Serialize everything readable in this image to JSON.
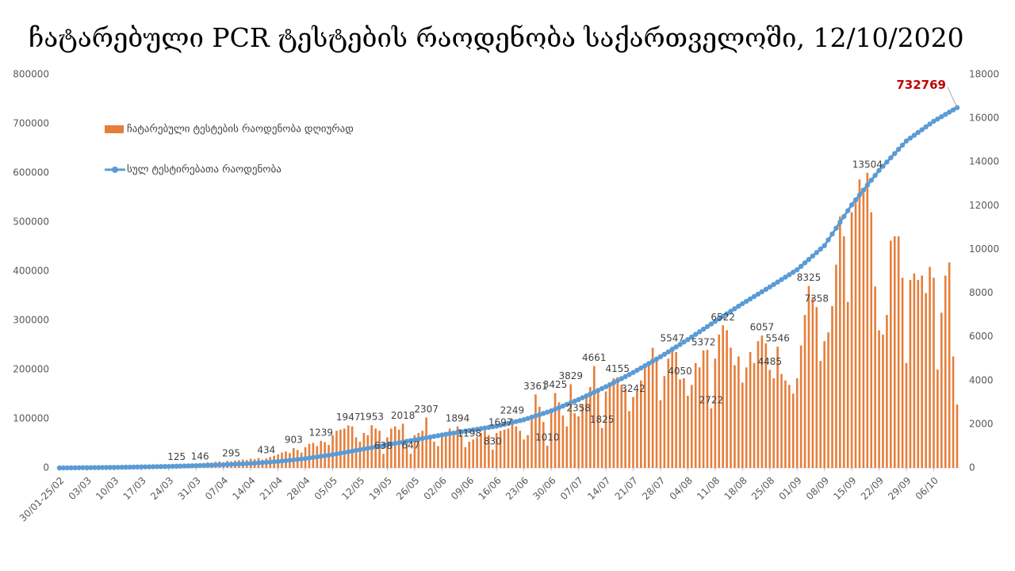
{
  "chart_data": {
    "type": "bar_line",
    "title": "ჩატარებული PCR ტესტების რაოდენობა საქართველოში, 12/10/2020",
    "legend": "top-left",
    "categories": [
      "30/01-25/02",
      null,
      null,
      null,
      null,
      null,
      null,
      "03/03",
      null,
      null,
      null,
      null,
      null,
      null,
      "10/03",
      null,
      null,
      null,
      null,
      null,
      null,
      "17/03",
      null,
      null,
      null,
      null,
      null,
      null,
      "24/03",
      null,
      null,
      null,
      null,
      null,
      null,
      "31/03",
      null,
      null,
      null,
      null,
      null,
      null,
      "07/04",
      null,
      null,
      null,
      null,
      null,
      null,
      "14/04",
      null,
      null,
      null,
      null,
      null,
      null,
      "21/04",
      null,
      null,
      null,
      null,
      null,
      null,
      "28/04",
      null,
      null,
      null,
      null,
      null,
      null,
      "05/05",
      null,
      null,
      null,
      null,
      null,
      null,
      "12/05",
      null,
      null,
      null,
      null,
      null,
      null,
      "19/05",
      null,
      null,
      null,
      null,
      null,
      null,
      "26/05",
      null,
      null,
      null,
      null,
      null,
      null,
      "02/06",
      null,
      null,
      null,
      null,
      null,
      null,
      "09/06",
      null,
      null,
      null,
      null,
      null,
      null,
      "16/06",
      null,
      null,
      null,
      null,
      null,
      null,
      "23/06",
      null,
      null,
      null,
      null,
      null,
      null,
      "30/06",
      null,
      null,
      null,
      null,
      null,
      null,
      "07/07",
      null,
      null,
      null,
      null,
      null,
      null,
      "14/07",
      null,
      null,
      null,
      null,
      null,
      null,
      "21/07",
      null,
      null,
      null,
      null,
      null,
      null,
      "28/07",
      null,
      null,
      null,
      null,
      null,
      null,
      "04/08",
      null,
      null,
      null,
      null,
      null,
      null,
      "11/08",
      null,
      null,
      null,
      null,
      null,
      null,
      "18/08",
      null,
      null,
      null,
      null,
      null,
      null,
      "25/08",
      null,
      null,
      null,
      null,
      null,
      null,
      "01/09",
      null,
      null,
      null,
      null,
      null,
      null,
      "08/09",
      null,
      null,
      null,
      null,
      null,
      null,
      "15/09",
      null,
      null,
      null,
      null,
      null,
      null,
      "22/09",
      null,
      null,
      null,
      null,
      null,
      null,
      "29/09",
      null,
      null,
      null,
      null,
      null,
      null,
      "06/10",
      null,
      null,
      null,
      null,
      null,
      null
    ],
    "series": [
      {
        "name": "ჩატარებული ტესტების რაოდენობა დღიურად",
        "color": "#e67e3a",
        "axis": "y2",
        "values": [
          40,
          10,
          15,
          20,
          25,
          30,
          20,
          40,
          35,
          50,
          45,
          60,
          55,
          70,
          40,
          65,
          80,
          75,
          90,
          100,
          80,
          110,
          95,
          120,
          130,
          100,
          140,
          115,
          150,
          160,
          125,
          170,
          180,
          150,
          200,
          190,
          146,
          210,
          260,
          240,
          280,
          300,
          250,
          320,
          295,
          330,
          350,
          380,
          360,
          420,
          400,
          450,
          380,
          434,
          500,
          560,
          620,
          700,
          750,
          680,
          903,
          820,
          700,
          950,
          1100,
          1150,
          1000,
          1239,
          1180,
          1050,
          1500,
          1700,
          1750,
          1800,
          1947,
          1900,
          1400,
          1200,
          1600,
          1500,
          1953,
          1800,
          1700,
          638,
          1400,
          1800,
          1900,
          1750,
          2018,
          1300,
          647,
          1500,
          1600,
          1700,
          2307,
          1400,
          1200,
          1000,
          1500,
          1650,
          1800,
          1700,
          1894,
          1500,
          950,
          1198,
          1300,
          1400,
          1600,
          1700,
          1500,
          830,
          1600,
          1697,
          1750,
          1800,
          2249,
          1900,
          1700,
          1300,
          1500,
          2200,
          3361,
          2800,
          2100,
          1010,
          2600,
          3425,
          3000,
          2400,
          1900,
          3829,
          2500,
          2358,
          2900,
          3200,
          3700,
          4661,
          3600,
          1825,
          3500,
          3900,
          4100,
          4155,
          3800,
          3600,
          2600,
          3242,
          3500,
          4000,
          4600,
          4700,
          5500,
          5000,
          3100,
          4200,
          5000,
          5547,
          5300,
          4050,
          4100,
          3300,
          3800,
          4800,
          4600,
          5372,
          5400,
          2722,
          5000,
          6100,
          6522,
          6300,
          5500,
          4700,
          5100,
          3900,
          4600,
          5300,
          4800,
          5800,
          6057,
          5700,
          4485,
          4100,
          5546,
          4300,
          4000,
          3800,
          3400,
          4100,
          5600,
          7000,
          8325,
          7800,
          7358,
          4900,
          5800,
          6200,
          7400,
          9300,
          11500,
          10600,
          7600,
          11700,
          12300,
          13200,
          12600,
          13504,
          11700,
          8300,
          6300,
          6100,
          7000,
          10400,
          10600,
          10600,
          8700,
          4800,
          8600,
          8900,
          8600,
          8800,
          8000,
          9200,
          8700,
          4500,
          7100,
          8800,
          9400,
          5100,
          2900
        ],
        "value_labels": [
          null,
          null,
          null,
          null,
          null,
          null,
          null,
          null,
          null,
          null,
          null,
          null,
          null,
          null,
          null,
          null,
          null,
          null,
          null,
          null,
          null,
          null,
          null,
          null,
          null,
          null,
          null,
          null,
          null,
          null,
          "125",
          null,
          null,
          null,
          null,
          null,
          "146",
          null,
          null,
          null,
          null,
          null,
          null,
          null,
          "295",
          null,
          null,
          null,
          null,
          null,
          null,
          null,
          null,
          "434",
          null,
          null,
          null,
          null,
          null,
          null,
          "903",
          null,
          null,
          null,
          null,
          null,
          null,
          "1239",
          null,
          null,
          null,
          null,
          null,
          null,
          "1947",
          null,
          null,
          null,
          null,
          null,
          "1953",
          null,
          null,
          "638",
          null,
          null,
          null,
          null,
          "2018",
          null,
          "647",
          null,
          null,
          null,
          "2307",
          null,
          null,
          null,
          null,
          null,
          null,
          null,
          "1894",
          null,
          null,
          "1198",
          null,
          null,
          null,
          null,
          null,
          "830",
          null,
          "1697",
          null,
          null,
          "2249",
          null,
          null,
          null,
          null,
          null,
          "3361",
          null,
          null,
          "1010",
          null,
          "3425",
          null,
          null,
          null,
          "3829",
          null,
          "2358",
          null,
          null,
          null,
          "4661",
          null,
          "1825",
          null,
          null,
          null,
          "4155",
          null,
          null,
          null,
          "3242",
          null,
          null,
          null,
          null,
          null,
          null,
          null,
          null,
          null,
          "5547",
          null,
          "4050",
          null,
          null,
          null,
          null,
          null,
          "5372",
          null,
          "2722",
          null,
          null,
          "6522",
          null,
          null,
          null,
          null,
          null,
          null,
          null,
          null,
          null,
          "6057",
          null,
          "4485",
          null,
          "5546",
          null,
          null,
          null,
          null,
          null,
          null,
          null,
          "8325",
          null,
          "7358",
          null,
          null,
          null,
          null,
          null,
          null,
          null,
          null,
          null,
          null,
          null,
          null,
          "13504",
          null,
          null,
          null,
          null,
          null,
          null,
          null,
          null,
          null,
          null,
          null,
          null,
          null,
          null,
          null,
          null,
          null,
          null,
          null,
          null,
          null,
          null,
          null
        ]
      },
      {
        "name": "სულ ტესტირებათა რაოდენობა",
        "color": "#5b9bd5",
        "values": [
          0,
          71,
          143,
          214,
          286,
          357,
          429,
          500,
          571,
          643,
          714,
          786,
          857,
          929,
          1000,
          1143,
          1286,
          1429,
          1571,
          1714,
          1857,
          2000,
          2143,
          2286,
          2429,
          2571,
          2714,
          2857,
          3000,
          3214,
          3429,
          3643,
          3857,
          4071,
          4286,
          4500,
          4786,
          5071,
          5357,
          5643,
          5929,
          6214,
          6500,
          6857,
          7214,
          7571,
          7929,
          8286,
          8643,
          9000,
          9571,
          10143,
          10714,
          11286,
          11857,
          12429,
          13000,
          13857,
          14714,
          15571,
          16429,
          17286,
          18143,
          19000,
          20143,
          21286,
          22429,
          23571,
          24714,
          25857,
          27000,
          28429,
          29857,
          31286,
          32714,
          34143,
          35571,
          37000,
          38429,
          39857,
          41286,
          42714,
          44143,
          45571,
          47000,
          48429,
          49857,
          51286,
          52714,
          54143,
          55571,
          57000,
          58429,
          59857,
          61286,
          62714,
          64143,
          65571,
          67000,
          68286,
          69571,
          70857,
          72143,
          73429,
          74714,
          76000,
          77286,
          78571,
          79857,
          81143,
          82429,
          83714,
          85000,
          86857,
          88714,
          90571,
          92429,
          94286,
          96143,
          98000,
          100571,
          103143,
          105714,
          108286,
          110857,
          113429,
          116000,
          119286,
          122571,
          125857,
          129143,
          132429,
          135714,
          139000,
          142714,
          146429,
          150143,
          153857,
          157571,
          161286,
          165000,
          169143,
          173286,
          177429,
          181571,
          185714,
          189857,
          194000,
          198571,
          203143,
          207714,
          212286,
          216857,
          221429,
          226000,
          231000,
          236000,
          241000,
          246000,
          251000,
          256000,
          261000,
          266286,
          271571,
          276857,
          282143,
          287429,
          292714,
          298000,
          303143,
          308286,
          313429,
          318571,
          323714,
          328857,
          334000,
          338857,
          343714,
          348571,
          353429,
          358286,
          363143,
          368000,
          373000,
          378000,
          383000,
          388000,
          393000,
          398000,
          403000,
          410000,
          417000,
          424000,
          431000,
          438000,
          445000,
          452000,
          463857,
          475714,
          487571,
          499429,
          511286,
          523143,
          535000,
          545000,
          555000,
          565000,
          575000,
          585000,
          595000,
          605000,
          613571,
          622143,
          630714,
          639286,
          647857,
          656429,
          665000,
          670714,
          676429,
          682143,
          687857,
          693571,
          699286,
          705000,
          709628,
          714256,
          718885,
          723513,
          728141,
          732769
        ],
        "value_labels": [
          null,
          null,
          null,
          null,
          null,
          null,
          null,
          null,
          null,
          null,
          null,
          null,
          null,
          null,
          null,
          null,
          null,
          null,
          null,
          null,
          null,
          null,
          null,
          null,
          null,
          null,
          null,
          null,
          null,
          null,
          null,
          null,
          null,
          null,
          null,
          null,
          null,
          null,
          null,
          null,
          null,
          null,
          null,
          null,
          null,
          null,
          null,
          null,
          null,
          null,
          null,
          null,
          null,
          null,
          null,
          null,
          null,
          null,
          null,
          null,
          null,
          null,
          null,
          null,
          null,
          null,
          null,
          null,
          null,
          null,
          null,
          null,
          null,
          null,
          null,
          null,
          null,
          null,
          null,
          null,
          null,
          null,
          null,
          null,
          null,
          null,
          null,
          null,
          null,
          null,
          null,
          null,
          null,
          null,
          null,
          null,
          null,
          null,
          null,
          null,
          null,
          null,
          null,
          null,
          null,
          null,
          null,
          null,
          null,
          null,
          null,
          null,
          null,
          null,
          null,
          null,
          null,
          null,
          null,
          null,
          null,
          null,
          null,
          null,
          null,
          null,
          null,
          null,
          null,
          null,
          null,
          null,
          null,
          null,
          null,
          null,
          null,
          null,
          null,
          null,
          null,
          null,
          null,
          null,
          null,
          null,
          null,
          null,
          null,
          null,
          null,
          null,
          null,
          null,
          null,
          null,
          null,
          null,
          null,
          null,
          null,
          null,
          null,
          null,
          null,
          null,
          null,
          null,
          null,
          null,
          null,
          null,
          null,
          null,
          null,
          null,
          null,
          null,
          null,
          null,
          null,
          null,
          null,
          null,
          null,
          null,
          null,
          null,
          null,
          null,
          null,
          null,
          null,
          null,
          null,
          null,
          null,
          null,
          null,
          null,
          null,
          null,
          null,
          null,
          null,
          null,
          null,
          null,
          null,
          null,
          null,
          null,
          null,
          null,
          null,
          null,
          null,
          null,
          null,
          null,
          null,
          null,
          null,
          null,
          null,
          null,
          null,
          null,
          null,
          null,
          "732769"
        ],
        "value_label_color": "#c00000"
      }
    ],
    "ylim": [
      0,
      800000
    ],
    "yticks": [
      0,
      100000,
      200000,
      300000,
      400000,
      500000,
      600000,
      700000,
      800000
    ],
    "y2lim": [
      0,
      18000
    ],
    "y2ticks": [
      0,
      2000,
      4000,
      6000,
      8000,
      10000,
      12000,
      14000,
      16000,
      18000
    ],
    "grid": false
  }
}
